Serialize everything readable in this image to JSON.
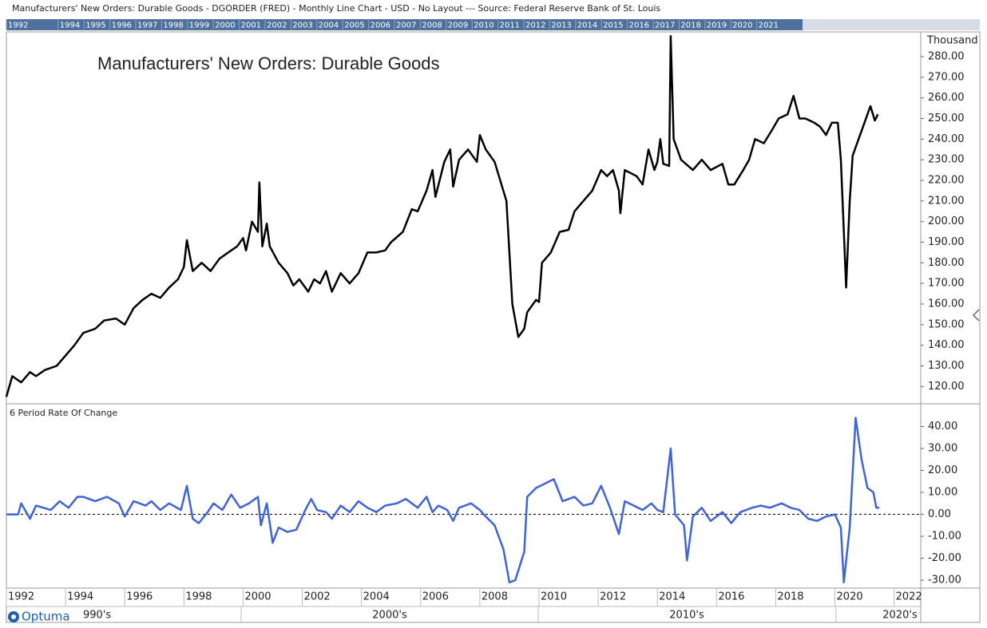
{
  "header": {
    "title": "Manufacturers' New Orders: Durable Goods - DGORDER (FRED) - Monthly Line Chart - USD - No Layout --- Source: Federal Reserve Bank of St. Louis"
  },
  "overview_years": [
    "1992",
    "1994",
    "1995",
    "1996",
    "1997",
    "1998",
    "1999",
    "2000",
    "2001",
    "2002",
    "2003",
    "2004",
    "2005",
    "2006",
    "2007",
    "2008",
    "2009",
    "2010",
    "2011",
    "2012",
    "2013",
    "2014",
    "2015",
    "2016",
    "2017",
    "2018",
    "2019",
    "2020",
    "2021"
  ],
  "logo": "Optuma",
  "decades": [
    "990's",
    "2000's",
    "2010's",
    "2020's"
  ],
  "chart_data": [
    {
      "type": "line",
      "title": "Manufacturers' New Orders: Durable Goods",
      "unit": "Thousand",
      "color": "#000000",
      "x": [
        1992.0,
        1992.2,
        1992.5,
        1992.8,
        1993.0,
        1993.3,
        1993.7,
        1994.0,
        1994.3,
        1994.6,
        1995.0,
        1995.3,
        1995.7,
        1996.0,
        1996.3,
        1996.6,
        1996.9,
        1997.2,
        1997.5,
        1997.8,
        1998.0,
        1998.1,
        1998.3,
        1998.6,
        1998.9,
        1999.2,
        1999.5,
        1999.8,
        2000.0,
        2000.1,
        2000.3,
        2000.5,
        2000.55,
        2000.65,
        2000.8,
        2000.9,
        2001.2,
        2001.5,
        2001.7,
        2001.9,
        2002.2,
        2002.4,
        2002.6,
        2002.8,
        2003.0,
        2003.3,
        2003.6,
        2003.9,
        2004.2,
        2004.5,
        2004.8,
        2005.0,
        2005.4,
        2005.7,
        2005.9,
        2006.2,
        2006.4,
        2006.5,
        2006.8,
        2007.0,
        2007.1,
        2007.3,
        2007.6,
        2007.9,
        2008.0,
        2008.2,
        2008.5,
        2008.9,
        2009.1,
        2009.3,
        2009.5,
        2009.6,
        2009.9,
        2010.0,
        2010.1,
        2010.4,
        2010.7,
        2011.0,
        2011.2,
        2011.5,
        2011.8,
        2012.1,
        2012.3,
        2012.5,
        2012.7,
        2012.75,
        2012.9,
        2013.3,
        2013.5,
        2013.7,
        2013.9,
        2014.0,
        2014.1,
        2014.2,
        2014.4,
        2014.45,
        2014.55,
        2014.8,
        2015.2,
        2015.5,
        2015.8,
        2016.2,
        2016.4,
        2016.6,
        2016.9,
        2017.1,
        2017.3,
        2017.6,
        2017.9,
        2018.1,
        2018.4,
        2018.6,
        2018.8,
        2019.0,
        2019.3,
        2019.5,
        2019.7,
        2019.9,
        2020.1,
        2020.2,
        2020.38,
        2020.5,
        2020.6,
        2020.8,
        2021.0,
        2021.2,
        2021.35,
        2021.45
      ],
      "values": [
        115,
        125,
        122,
        127,
        125,
        128,
        130,
        135,
        140,
        146,
        148,
        152,
        153,
        150,
        158,
        162,
        165,
        163,
        168,
        172,
        178,
        191,
        176,
        180,
        176,
        182,
        185,
        188,
        192,
        186,
        200,
        195,
        219,
        188,
        199,
        188,
        180,
        175,
        169,
        172,
        166,
        172,
        170,
        176,
        166,
        175,
        170,
        175,
        185,
        185,
        186,
        190,
        195,
        206,
        205,
        215,
        225,
        212,
        229,
        235,
        217,
        230,
        235,
        229,
        242,
        235,
        229,
        210,
        160,
        144,
        148,
        156,
        162,
        161,
        180,
        185,
        195,
        196,
        205,
        210,
        215,
        225,
        222,
        225,
        215,
        204,
        225,
        222,
        218,
        235,
        225,
        229,
        240,
        228,
        227,
        290,
        240,
        230,
        225,
        230,
        225,
        228,
        218,
        218,
        225,
        230,
        240,
        238,
        245,
        250,
        252,
        261,
        250,
        250,
        248,
        246,
        242,
        248,
        248,
        230,
        168,
        210,
        232,
        240,
        248,
        256,
        249,
        252
      ],
      "xlim": [
        1992,
        2022.9
      ],
      "ylim": [
        112,
        292
      ],
      "yticks": [
        {
          "value": 120,
          "label": "120.00"
        },
        {
          "value": 130,
          "label": "130.00"
        },
        {
          "value": 140,
          "label": "140.00"
        },
        {
          "value": 150,
          "label": "150.00"
        },
        {
          "value": 160,
          "label": "160.00"
        },
        {
          "value": 170,
          "label": "170.00"
        },
        {
          "value": 180,
          "label": "180.00"
        },
        {
          "value": 190,
          "label": "190.00"
        },
        {
          "value": 200,
          "label": "200.00"
        },
        {
          "value": 210,
          "label": "210.00"
        },
        {
          "value": 220,
          "label": "220.00"
        },
        {
          "value": 230,
          "label": "230.00"
        },
        {
          "value": 240,
          "label": "240.00"
        },
        {
          "value": 250,
          "label": "250.00"
        },
        {
          "value": 260,
          "label": "260.00"
        },
        {
          "value": 270,
          "label": "270.00"
        },
        {
          "value": 280,
          "label": "280.00"
        }
      ]
    },
    {
      "type": "line",
      "title": "6 Period Rate Of Change",
      "color": "#3f63d8",
      "hline": 0,
      "x": [
        1992.0,
        1992.4,
        1992.5,
        1992.8,
        1993.0,
        1993.5,
        1993.8,
        1994.1,
        1994.4,
        1994.6,
        1995.0,
        1995.4,
        1995.8,
        1996.0,
        1996.3,
        1996.7,
        1996.9,
        1997.2,
        1997.5,
        1997.9,
        1998.1,
        1998.3,
        1998.5,
        1998.8,
        1999.0,
        1999.3,
        1999.6,
        1999.9,
        2000.2,
        2000.5,
        2000.6,
        2000.8,
        2001.0,
        2001.2,
        2001.5,
        2001.8,
        2002.1,
        2002.3,
        2002.5,
        2002.8,
        2003.0,
        2003.3,
        2003.6,
        2003.9,
        2004.2,
        2004.5,
        2004.8,
        2005.2,
        2005.5,
        2005.9,
        2006.2,
        2006.4,
        2006.6,
        2006.9,
        2007.1,
        2007.3,
        2007.7,
        2008.0,
        2008.2,
        2008.5,
        2008.8,
        2009.0,
        2009.2,
        2009.5,
        2009.6,
        2009.9,
        2010.2,
        2010.5,
        2010.8,
        2011.2,
        2011.5,
        2011.8,
        2012.1,
        2012.4,
        2012.7,
        2012.9,
        2013.2,
        2013.5,
        2013.8,
        2014.0,
        2014.2,
        2014.45,
        2014.6,
        2014.9,
        2015.0,
        2015.2,
        2015.5,
        2015.8,
        2016.2,
        2016.5,
        2016.8,
        2017.2,
        2017.5,
        2017.8,
        2018.2,
        2018.5,
        2018.8,
        2019.1,
        2019.4,
        2019.7,
        2020.0,
        2020.2,
        2020.3,
        2020.5,
        2020.7,
        2020.9,
        2021.1,
        2021.3,
        2021.4,
        2021.5
      ],
      "values": [
        0,
        0,
        5,
        -2,
        4,
        2,
        6,
        3,
        8,
        8,
        6,
        8,
        5,
        -1,
        6,
        4,
        6,
        2,
        5,
        2,
        13,
        -2,
        -4,
        1,
        5,
        2,
        9,
        3,
        5,
        8,
        -5,
        5,
        -13,
        -6,
        -8,
        -7,
        2,
        7,
        2,
        1,
        -2,
        4,
        1,
        6,
        3,
        1,
        4,
        5,
        7,
        3,
        8,
        1,
        4,
        2,
        -3,
        3,
        5,
        2,
        -1,
        -5,
        -16,
        -31,
        -30,
        -17,
        8,
        12,
        14,
        16,
        6,
        8,
        4,
        5,
        13,
        3,
        -9,
        6,
        4,
        2,
        5,
        2,
        1,
        30,
        0,
        -5,
        -21,
        -1,
        3,
        -3,
        1,
        -4,
        1,
        3,
        4,
        3,
        5,
        3,
        2,
        -2,
        -3,
        -1,
        0,
        -6,
        -31,
        -6,
        44,
        25,
        12,
        10,
        3,
        3
      ],
      "xlim": [
        1992,
        2022.9
      ],
      "ylim": [
        -33.6,
        50
      ],
      "yticks": [
        {
          "value": -30,
          "label": "-30.00"
        },
        {
          "value": -20,
          "label": "-20.00"
        },
        {
          "value": -10,
          "label": "-10.00"
        },
        {
          "value": 0,
          "label": "0.00"
        },
        {
          "value": 10,
          "label": "10.00"
        },
        {
          "value": 20,
          "label": "20.00"
        },
        {
          "value": 30,
          "label": "30.00"
        },
        {
          "value": 40,
          "label": "40.00"
        }
      ],
      "xticks": [
        1992,
        1994,
        1996,
        1998,
        2000,
        2002,
        2004,
        2006,
        2008,
        2010,
        2012,
        2014,
        2016,
        2018,
        2020,
        2022
      ]
    }
  ]
}
